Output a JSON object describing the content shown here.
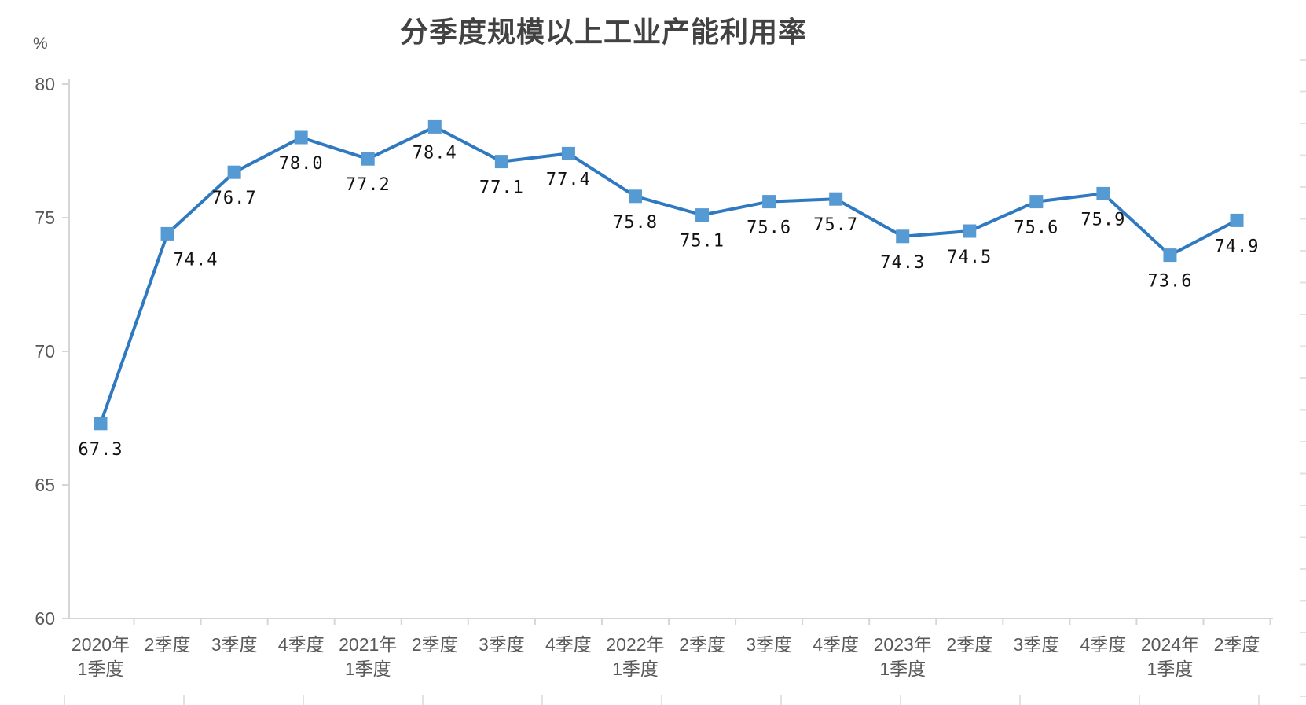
{
  "chart_data": {
    "type": "line",
    "title": "分季度规模以上工业产能利用率",
    "unit_label": "%",
    "categories": [
      [
        "2020年",
        "1季度"
      ],
      [
        "2季度"
      ],
      [
        "3季度"
      ],
      [
        "4季度"
      ],
      [
        "2021年",
        "1季度"
      ],
      [
        "2季度"
      ],
      [
        "3季度"
      ],
      [
        "4季度"
      ],
      [
        "2022年",
        "1季度"
      ],
      [
        "2季度"
      ],
      [
        "3季度"
      ],
      [
        "4季度"
      ],
      [
        "2023年",
        "1季度"
      ],
      [
        "2季度"
      ],
      [
        "3季度"
      ],
      [
        "4季度"
      ],
      [
        "2024年",
        "1季度"
      ],
      [
        "2季度"
      ]
    ],
    "values": [
      67.3,
      74.4,
      76.7,
      78.0,
      77.2,
      78.4,
      77.1,
      77.4,
      75.8,
      75.1,
      75.6,
      75.7,
      74.3,
      74.5,
      75.6,
      75.9,
      73.6,
      74.9
    ],
    "labels": [
      "67.3",
      "74.4",
      "76.7",
      "78.0",
      "77.2",
      "78.4",
      "77.1",
      "77.4",
      "75.8",
      "75.1",
      "75.6",
      "75.7",
      "74.3",
      "74.5",
      "75.6",
      "75.9",
      "73.6",
      "74.9"
    ],
    "y_ticks": [
      "80",
      "75",
      "70",
      "65",
      "60"
    ],
    "ylim": [
      60,
      80
    ],
    "grid": false,
    "legend": "none",
    "marker": "square",
    "colors": {
      "line": "#2e79c0",
      "marker": "#569ad4",
      "axis": "#d6d6d6",
      "tick_label": "#595959",
      "title": "#424242",
      "data_label": "#111111"
    }
  }
}
